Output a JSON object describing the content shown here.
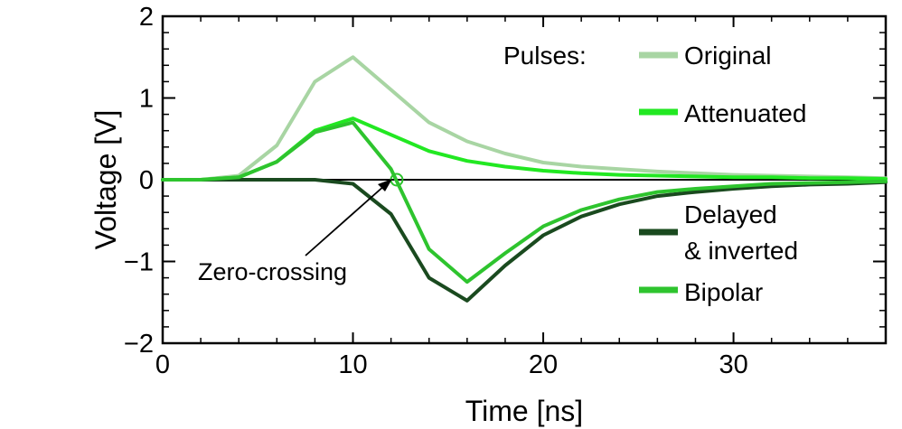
{
  "chart_data": {
    "type": "line",
    "title": "",
    "xlabel": "Time [ns]",
    "ylabel": "Voltage [V]",
    "xlim": [
      0,
      38
    ],
    "ylim": [
      -2,
      2
    ],
    "xticks": [
      0,
      10,
      20,
      30
    ],
    "yticks": [
      -2,
      -1,
      0,
      1,
      2
    ],
    "xtick_labels": [
      "0",
      "10",
      "20",
      "30"
    ],
    "ytick_labels": [
      "−2",
      "−1",
      "0",
      "1",
      "2"
    ],
    "grid": false,
    "legend_title": "Pulses:",
    "legend_placement": "right",
    "x": [
      0,
      2,
      4,
      6,
      8,
      10,
      12,
      14,
      16,
      18,
      20,
      22,
      24,
      26,
      28,
      30,
      32,
      34,
      36,
      38
    ],
    "series": [
      {
        "name": "Original",
        "color": "#a8d5a3",
        "values": [
          0,
          0,
          0.05,
          0.42,
          1.2,
          1.5,
          1.1,
          0.7,
          0.47,
          0.32,
          0.21,
          0.16,
          0.13,
          0.1,
          0.08,
          0.06,
          0.05,
          0.04,
          0.03,
          0.02
        ]
      },
      {
        "name": "Attenuated",
        "color": "#22e822",
        "values": [
          0,
          0,
          0.03,
          0.22,
          0.6,
          0.75,
          0.55,
          0.35,
          0.23,
          0.16,
          0.11,
          0.08,
          0.06,
          0.05,
          0.04,
          0.03,
          0.03,
          0.02,
          0.02,
          0.01
        ]
      },
      {
        "name": "Delayed\n& inverted",
        "label_lines": [
          "Delayed",
          "& inverted"
        ],
        "color": "#1a4a1f",
        "values": [
          0,
          0,
          0,
          0,
          0,
          -0.05,
          -0.42,
          -1.2,
          -1.48,
          -1.05,
          -0.68,
          -0.45,
          -0.3,
          -0.2,
          -0.15,
          -0.11,
          -0.08,
          -0.06,
          -0.05,
          -0.03
        ]
      },
      {
        "name": "Bipolar",
        "color": "#2ec42e",
        "values": [
          0,
          0,
          0.03,
          0.22,
          0.58,
          0.7,
          0.13,
          -0.85,
          -1.25,
          -0.9,
          -0.57,
          -0.37,
          -0.24,
          -0.15,
          -0.11,
          -0.08,
          -0.05,
          -0.04,
          -0.03,
          -0.02
        ]
      }
    ],
    "zero_line": 0,
    "annotations": [
      {
        "text": "Zero-crossing",
        "x": 12.3,
        "y": 0,
        "marker": "circle",
        "marker_color": "#2ec42e"
      }
    ]
  }
}
